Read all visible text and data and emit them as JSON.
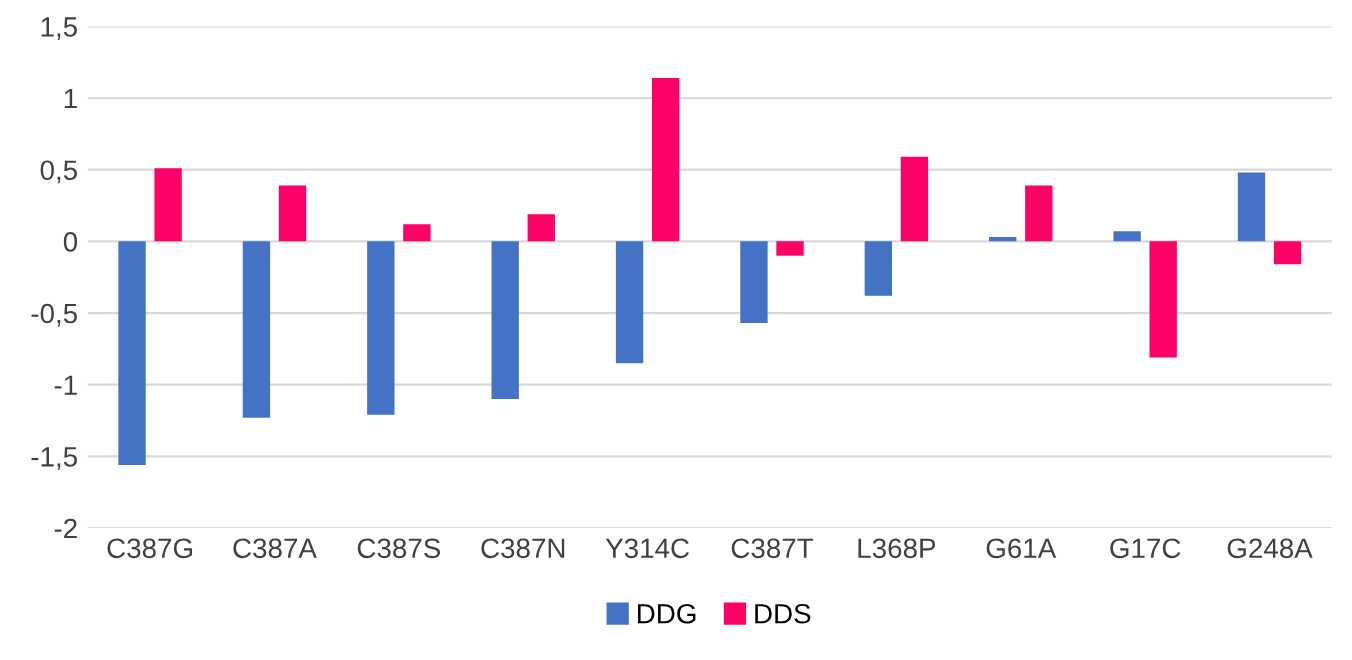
{
  "chart_data": {
    "type": "bar",
    "categories": [
      "C387G",
      "C387A",
      "C387S",
      "C387N",
      "Y314C",
      "C387T",
      "L368P",
      "G61A",
      "G17C",
      "G248A"
    ],
    "series": [
      {
        "name": "DDG",
        "color": "#4472c4",
        "values": [
          -1.56,
          -1.23,
          -1.21,
          -1.1,
          -0.85,
          -0.57,
          -0.38,
          0.03,
          0.07,
          0.48
        ]
      },
      {
        "name": "DDS",
        "color": "#ff0066",
        "values": [
          0.51,
          0.39,
          0.12,
          0.19,
          1.14,
          -0.1,
          0.59,
          0.39,
          -0.81,
          -0.16
        ]
      }
    ],
    "ylim": [
      -2,
      1.5
    ],
    "yticks": [
      {
        "value": -2,
        "label": "-2"
      },
      {
        "value": -1.5,
        "label": "-1,5"
      },
      {
        "value": -1,
        "label": "-1"
      },
      {
        "value": -0.5,
        "label": "-0,5"
      },
      {
        "value": 0,
        "label": "0"
      },
      {
        "value": 0.5,
        "label": "0,5"
      },
      {
        "value": 1,
        "label": "1"
      },
      {
        "value": 1.5,
        "label": "1,5"
      }
    ],
    "grid": "y",
    "legend": "bottom"
  }
}
